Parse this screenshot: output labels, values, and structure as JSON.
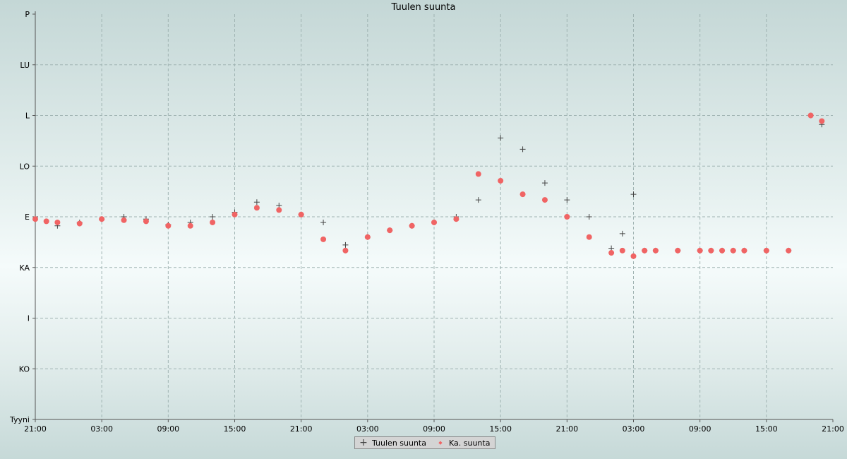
{
  "chart_data": {
    "type": "scatter",
    "title": "Tuulen suunta",
    "y_categories": [
      "Tyyni",
      "KO",
      "I",
      "KA",
      "E",
      "LO",
      "L",
      "LU",
      "P"
    ],
    "y_values_deg": [
      0,
      45,
      90,
      135,
      180,
      225,
      270,
      315,
      360
    ],
    "ylim": [
      0,
      360
    ],
    "x_ticks": [
      "21:00",
      "03:00",
      "09:00",
      "15:00",
      "21:00",
      "03:00",
      "09:00",
      "15:00",
      "21:00",
      "03:00",
      "09:00",
      "15:00",
      "21:00"
    ],
    "x_range_hours": [
      0,
      72
    ],
    "grid": true,
    "legend_position": "bottom-center",
    "series": [
      {
        "name": "Tuulen suunta",
        "marker": "plus",
        "color": "#444444",
        "x": [
          0,
          2,
          4,
          6,
          8,
          10,
          12,
          14,
          16,
          18,
          20,
          22,
          24,
          26,
          28,
          30,
          32,
          34,
          36,
          38,
          40,
          42,
          44,
          46,
          48,
          50,
          52,
          53,
          54,
          55,
          56,
          58,
          60,
          61,
          62,
          63,
          64,
          66,
          68,
          70,
          71
        ],
        "y": [
          180,
          172,
          175,
          178,
          180,
          178,
          173,
          175,
          180,
          184,
          193,
          190,
          182,
          175,
          155,
          162,
          168,
          172,
          175,
          180,
          195,
          250,
          240,
          210,
          195,
          180,
          152,
          165,
          200,
          150,
          150,
          150,
          150,
          150,
          150,
          150,
          150,
          150,
          150,
          270,
          262
        ]
      },
      {
        "name": "Ka. suunta",
        "marker": "dot",
        "color": "#f06464",
        "x": [
          0,
          1,
          2,
          4,
          6,
          8,
          10,
          12,
          14,
          16,
          18,
          20,
          22,
          24,
          26,
          28,
          30,
          32,
          34,
          36,
          38,
          40,
          42,
          44,
          46,
          48,
          50,
          52,
          53,
          54,
          55,
          56,
          58,
          60,
          61,
          62,
          63,
          64,
          66,
          68,
          70,
          71
        ],
        "y": [
          178,
          176,
          175,
          174,
          178,
          177,
          176,
          172,
          172,
          175,
          182,
          188,
          186,
          182,
          160,
          150,
          162,
          168,
          172,
          175,
          178,
          218,
          212,
          200,
          195,
          180,
          162,
          148,
          150,
          145,
          150,
          150,
          150,
          150,
          150,
          150,
          150,
          150,
          150,
          150,
          270,
          265
        ]
      }
    ]
  },
  "legend": {
    "items": [
      {
        "symbol": "+",
        "label": "Tuulen suunta"
      },
      {
        "symbol": "◆",
        "label": "Ka. suunta"
      }
    ]
  }
}
